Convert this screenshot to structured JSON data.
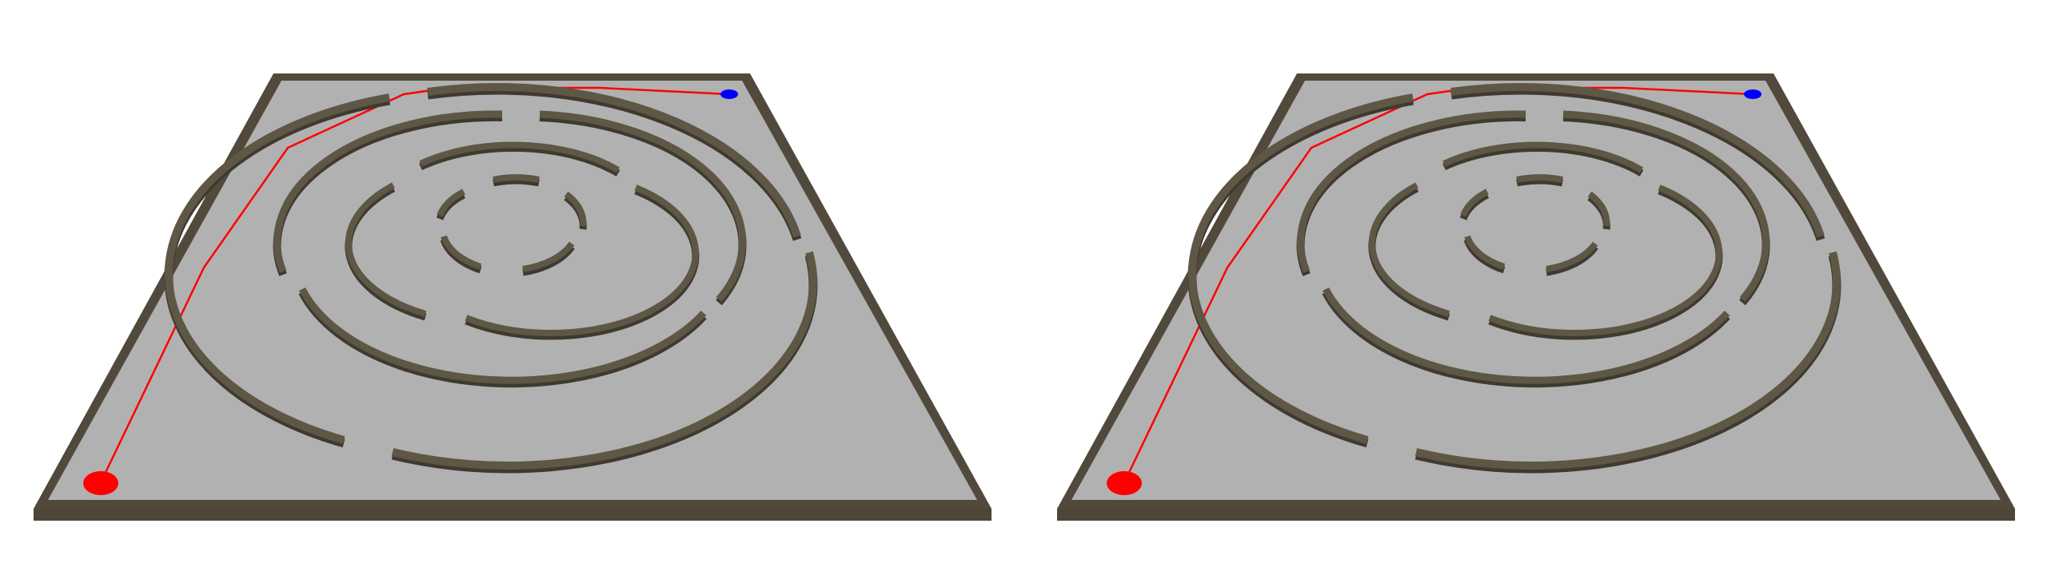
{
  "scene": {
    "title": "",
    "colors": {
      "background": "#ffffff",
      "floor": "#b1b1b1",
      "wall_top": "#4c4639",
      "wall_side": "#6e6650",
      "path": "#ff0000",
      "start_marker": "#ff0000",
      "goal_marker": "#0000ff"
    },
    "views": [
      {
        "id": "left",
        "label": ""
      },
      {
        "id": "right",
        "label": ""
      }
    ]
  }
}
